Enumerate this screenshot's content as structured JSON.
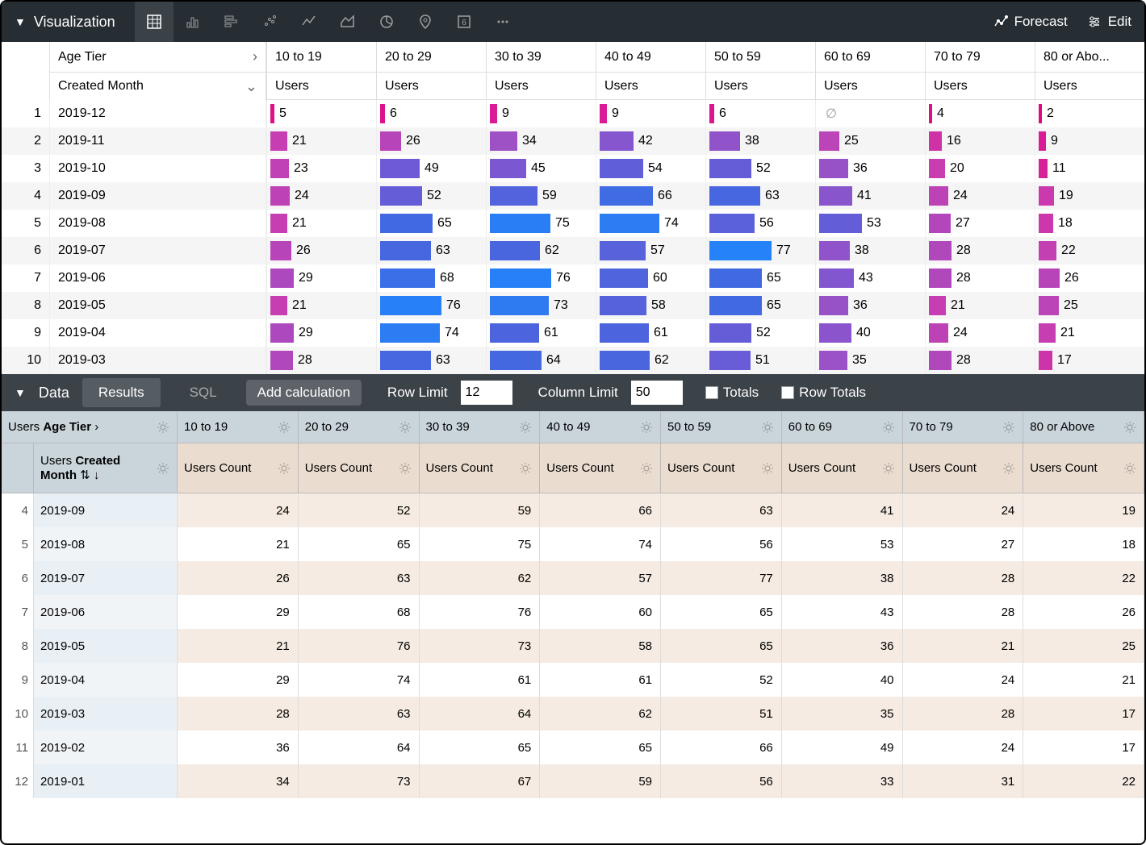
{
  "visualization": {
    "title": "Visualization",
    "forecast_label": "Forecast",
    "edit_label": "Edit",
    "viz_types": [
      "table",
      "column",
      "bar",
      "scatter",
      "line",
      "area",
      "pie",
      "map",
      "single",
      "more"
    ],
    "active_viz": 0,
    "pivot_label": "Age Tier",
    "dimension_label": "Created Month",
    "measure_label": "Users",
    "columns": [
      "10 to 19",
      "20 to 29",
      "30 to 39",
      "40 to 49",
      "50 to 59",
      "60 to 69",
      "70 to 79",
      "80 or Abo..."
    ],
    "max_value": 80,
    "bar_max_width": 80,
    "rows": [
      {
        "n": 1,
        "dim": "2019-12",
        "vals": [
          5,
          6,
          9,
          9,
          6,
          null,
          4,
          2
        ]
      },
      {
        "n": 2,
        "dim": "2019-11",
        "vals": [
          21,
          26,
          34,
          42,
          38,
          25,
          16,
          9
        ]
      },
      {
        "n": 3,
        "dim": "2019-10",
        "vals": [
          23,
          49,
          45,
          54,
          52,
          36,
          20,
          11
        ]
      },
      {
        "n": 4,
        "dim": "2019-09",
        "vals": [
          24,
          52,
          59,
          66,
          63,
          41,
          24,
          19
        ]
      },
      {
        "n": 5,
        "dim": "2019-08",
        "vals": [
          21,
          65,
          75,
          74,
          56,
          53,
          27,
          18
        ]
      },
      {
        "n": 6,
        "dim": "2019-07",
        "vals": [
          26,
          63,
          62,
          57,
          77,
          38,
          28,
          22
        ]
      },
      {
        "n": 7,
        "dim": "2019-06",
        "vals": [
          29,
          68,
          76,
          60,
          65,
          43,
          28,
          26
        ]
      },
      {
        "n": 8,
        "dim": "2019-05",
        "vals": [
          21,
          76,
          73,
          58,
          65,
          36,
          21,
          25
        ]
      },
      {
        "n": 9,
        "dim": "2019-04",
        "vals": [
          29,
          74,
          61,
          61,
          52,
          40,
          24,
          21
        ]
      },
      {
        "n": 10,
        "dim": "2019-03",
        "vals": [
          28,
          63,
          64,
          62,
          51,
          35,
          28,
          17
        ]
      }
    ],
    "color_stops": [
      {
        "v": 0,
        "c": "#e6007e"
      },
      {
        "v": 20,
        "c": "#c93db0"
      },
      {
        "v": 35,
        "c": "#9b51c7"
      },
      {
        "v": 50,
        "c": "#6b5bd6"
      },
      {
        "v": 65,
        "c": "#4169e1"
      },
      {
        "v": 80,
        "c": "#1e88ff"
      }
    ]
  },
  "data": {
    "title": "Data",
    "tabs": {
      "results": "Results",
      "sql": "SQL"
    },
    "add_calc": "Add calculation",
    "row_limit_label": "Row Limit",
    "row_limit_value": "12",
    "col_limit_label": "Column Limit",
    "col_limit_value": "50",
    "totals_label": "Totals",
    "row_totals_label": "Row Totals",
    "pivot_label_prefix": "Users ",
    "pivot_label": "Age Tier",
    "dim_label_prefix": "Users ",
    "dim_label": "Created Month",
    "measure_label": "Users Count",
    "columns": [
      "10 to 19",
      "20 to 29",
      "30 to 39",
      "40 to 49",
      "50 to 59",
      "60 to 69",
      "70 to 79",
      "80 or Above"
    ],
    "rows": [
      {
        "n": 4,
        "dim": "2019-09",
        "vals": [
          24,
          52,
          59,
          66,
          63,
          41,
          24,
          19
        ]
      },
      {
        "n": 5,
        "dim": "2019-08",
        "vals": [
          21,
          65,
          75,
          74,
          56,
          53,
          27,
          18
        ]
      },
      {
        "n": 6,
        "dim": "2019-07",
        "vals": [
          26,
          63,
          62,
          57,
          77,
          38,
          28,
          22
        ]
      },
      {
        "n": 7,
        "dim": "2019-06",
        "vals": [
          29,
          68,
          76,
          60,
          65,
          43,
          28,
          26
        ]
      },
      {
        "n": 8,
        "dim": "2019-05",
        "vals": [
          21,
          76,
          73,
          58,
          65,
          36,
          21,
          25
        ]
      },
      {
        "n": 9,
        "dim": "2019-04",
        "vals": [
          29,
          74,
          61,
          61,
          52,
          40,
          24,
          21
        ]
      },
      {
        "n": 10,
        "dim": "2019-03",
        "vals": [
          28,
          63,
          64,
          62,
          51,
          35,
          28,
          17
        ]
      },
      {
        "n": 11,
        "dim": "2019-02",
        "vals": [
          36,
          64,
          65,
          65,
          66,
          49,
          24,
          17
        ]
      },
      {
        "n": 12,
        "dim": "2019-01",
        "vals": [
          34,
          73,
          67,
          59,
          56,
          33,
          31,
          22
        ]
      }
    ]
  }
}
